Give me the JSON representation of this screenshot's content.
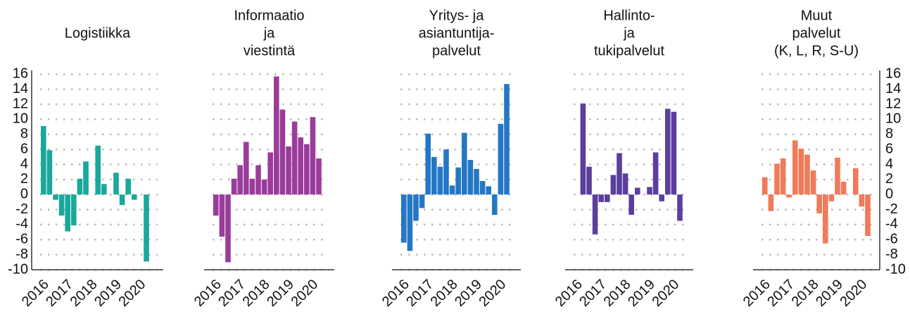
{
  "chart_data": [
    {
      "type": "bar",
      "title": [
        "Logistiikka"
      ],
      "color": "#1aa89b",
      "categories": [
        "2016",
        null,
        null,
        null,
        "2017",
        null,
        null,
        null,
        "2018",
        null,
        null,
        null,
        "2019",
        null,
        null,
        null,
        "2020",
        null
      ],
      "values": [
        9.1,
        5.9,
        -0.7,
        -2.8,
        -4.9,
        -4.1,
        2.1,
        4.4,
        0,
        6.5,
        1.4,
        0,
        2.9,
        -1.4,
        2.1,
        -0.7,
        0,
        -8.9
      ],
      "ylim": [
        -10,
        16.5
      ],
      "yticks": [
        -10,
        -8,
        -6,
        -4,
        -2,
        0,
        2,
        4,
        6,
        8,
        10,
        12,
        14,
        16
      ],
      "grid": true,
      "ytick_side": "left"
    },
    {
      "type": "bar",
      "title": [
        "Informaatio",
        "ja",
        "viestintä"
      ],
      "color": "#9b3b9b",
      "categories": [
        "2016",
        null,
        null,
        null,
        "2017",
        null,
        null,
        null,
        "2018",
        null,
        null,
        null,
        "2019",
        null,
        null,
        null,
        "2020",
        null
      ],
      "values": [
        -2.8,
        -5.6,
        -9,
        2.1,
        3.9,
        7,
        2.1,
        3.9,
        2,
        5.6,
        15.7,
        11.3,
        6.4,
        9.7,
        7.6,
        6.7,
        10.3,
        4.8
      ],
      "ylim": [
        -10,
        16.5
      ],
      "yticks": [
        -10,
        -8,
        -6,
        -4,
        -2,
        0,
        2,
        4,
        6,
        8,
        10,
        12,
        14,
        16
      ],
      "grid": true
    },
    {
      "type": "bar",
      "title": [
        "Yritys- ja",
        "asiantuntija-",
        "palvelut"
      ],
      "color": "#2477c4",
      "categories": [
        "2016",
        null,
        null,
        null,
        "2017",
        null,
        null,
        null,
        "2018",
        null,
        null,
        null,
        "2019",
        null,
        null,
        null,
        "2020",
        null
      ],
      "values": [
        -6.4,
        -7.5,
        -3.5,
        -1.8,
        8.1,
        5,
        3.7,
        6,
        1.2,
        3.6,
        8.2,
        4.6,
        3.4,
        1.8,
        1.1,
        -2.7,
        9.4,
        14.7
      ],
      "ylim": [
        -10,
        16.5
      ],
      "yticks": [
        -10,
        -8,
        -6,
        -4,
        -2,
        0,
        2,
        4,
        6,
        8,
        10,
        12,
        14,
        16
      ],
      "grid": true
    },
    {
      "type": "bar",
      "title": [
        "Hallinto-",
        "ja",
        "tukipalvelut"
      ],
      "color": "#5c3e9d",
      "categories": [
        "2016",
        null,
        null,
        null,
        "2017",
        null,
        null,
        null,
        "2018",
        null,
        null,
        null,
        "2019",
        null,
        null,
        null,
        "2020",
        null
      ],
      "values": [
        0,
        12.1,
        3.7,
        -5.3,
        -1,
        -1,
        2.6,
        5.5,
        2.8,
        -2.7,
        0.9,
        0,
        1,
        5.6,
        -0.9,
        11.4,
        11,
        -3.5
      ],
      "ylim": [
        -10,
        16.5
      ],
      "yticks": [
        -10,
        -8,
        -6,
        -4,
        -2,
        0,
        2,
        4,
        6,
        8,
        10,
        12,
        14,
        16
      ],
      "grid": true
    },
    {
      "type": "bar",
      "title": [
        "Muut",
        "palvelut",
        "(K, L, R, S-U)"
      ],
      "color": "#f07a5a",
      "categories": [
        "2016",
        null,
        null,
        null,
        "2017",
        null,
        null,
        null,
        "2018",
        null,
        null,
        null,
        "2019",
        null,
        null,
        null,
        "2020",
        null
      ],
      "values": [
        2.3,
        -2.2,
        4.1,
        4.8,
        -0.4,
        7.2,
        6.1,
        5.3,
        3.2,
        -2.5,
        -6.5,
        -0.9,
        4.9,
        1.7,
        0,
        3.5,
        -1.6,
        -5.5
      ],
      "ylim": [
        -10,
        16.5
      ],
      "yticks": [
        -10,
        -8,
        -6,
        -4,
        -2,
        0,
        2,
        4,
        6,
        8,
        10,
        12,
        14,
        16
      ],
      "grid": true,
      "ytick_side": "right"
    }
  ]
}
